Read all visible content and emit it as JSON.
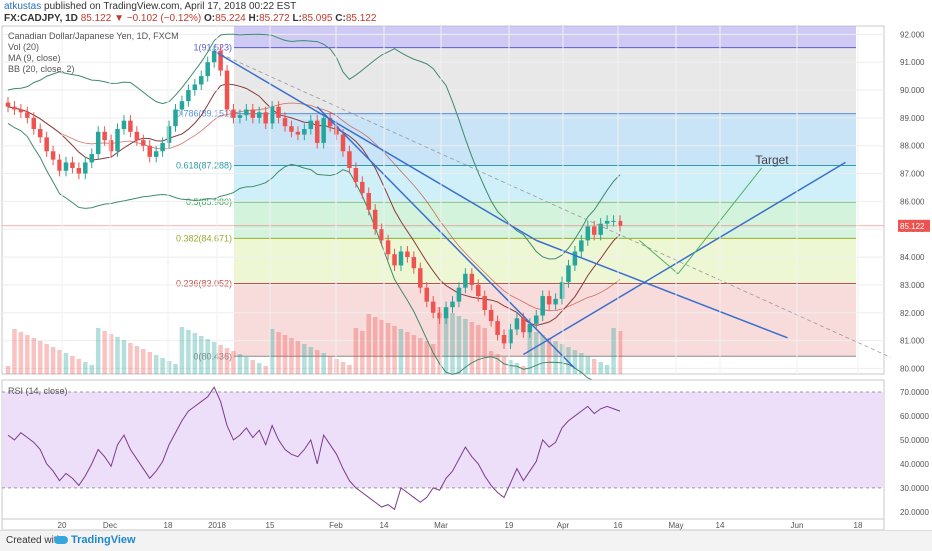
{
  "header": {
    "user": "atkustas",
    "published": "published on TradingView.com, April 17, 2018 00:22 EST",
    "symbol": "FX:CADJPY, 1D",
    "last": "85.122",
    "change": "▼ −0.102 (−0.12%)",
    "o_label": "O:",
    "o": "85.224",
    "h_label": "H:",
    "h": "85.272",
    "l_label": "L:",
    "l": "85.095",
    "c_label": "C:",
    "c": "85.122"
  },
  "legend": {
    "name": "Canadian Dollar/Japanese Yen, 1D, FXCM",
    "vol": "Vol (20)",
    "ma": "MA (9, close)",
    "bb": "BB (20, close, 2)"
  },
  "rsi_label": "RSI (14, close)",
  "footer": {
    "created": "Created with",
    "brand": "TradingView"
  },
  "colors": {
    "up": "#26a69a",
    "down": "#ef5350",
    "trend": "#3b6fce",
    "target": "#52b364",
    "bb": "#3f8b6e",
    "ma": "#8b3a3a",
    "rsi": "#7c3d8a"
  },
  "chart_data": [
    {
      "type": "candlestick",
      "title": "Canadian Dollar/Japanese Yen, 1D, FXCM",
      "ylim": [
        79.8,
        92.3
      ],
      "y_ticks": [
        "92.000",
        "91.000",
        "90.000",
        "89.000",
        "88.000",
        "87.000",
        "86.000",
        "85.000",
        "84.000",
        "83.000",
        "82.000",
        "81.000",
        "80.000"
      ],
      "x_ticks": [
        "20",
        "Dec",
        "18",
        "2018",
        "15",
        "Feb",
        "14",
        "Mar",
        "19",
        "Apr",
        "16",
        "May",
        "14",
        "Jun",
        "18"
      ],
      "last_price": "85.122",
      "fibonacci": [
        {
          "label": "1(91.523)",
          "value": 91.523
        },
        {
          "label": "0.786(89.151)",
          "value": 89.151
        },
        {
          "label": "0.618(87.288)",
          "value": 87.288
        },
        {
          "label": "0.5(85.980)",
          "value": 85.98
        },
        {
          "label": "0.382(84.671)",
          "value": 84.671
        },
        {
          "label": "0.236(83.052)",
          "value": 83.052
        },
        {
          "label": "0(80.436)",
          "value": 80.436
        }
      ],
      "annotations": [
        "Target"
      ],
      "closes": [
        89.4,
        89.3,
        89.2,
        89.0,
        88.6,
        88.3,
        87.8,
        87.5,
        87.1,
        87.4,
        87.2,
        87.0,
        87.4,
        87.7,
        88.5,
        88.2,
        87.8,
        88.6,
        88.9,
        88.5,
        88.2,
        88.0,
        87.6,
        87.8,
        88.1,
        88.7,
        89.3,
        89.6,
        90.0,
        90.2,
        90.5,
        91.0,
        91.4,
        90.7,
        89.3,
        89.0,
        89.1,
        89.3,
        89.0,
        89.2,
        88.8,
        89.4,
        89.0,
        88.7,
        88.5,
        88.4,
        88.6,
        88.9,
        88.1,
        89.0,
        88.7,
        88.4,
        87.8,
        87.2,
        86.7,
        86.3,
        85.7,
        85.0,
        84.6,
        84.1,
        83.7,
        84.2,
        84.0,
        83.6,
        82.9,
        82.4,
        82.0,
        81.8,
        82.2,
        82.4,
        82.9,
        83.4,
        83.0,
        82.6,
        82.1,
        81.7,
        81.2,
        80.9,
        81.4,
        81.8,
        81.3,
        81.6,
        81.9,
        82.6,
        82.3,
        82.5,
        83.1,
        83.7,
        84.2,
        84.6,
        85.1,
        84.8,
        85.2,
        85.3,
        85.3,
        85.122
      ],
      "rsi_ylim": [
        17,
        75
      ],
      "rsi_ticks": [
        "70.0000",
        "60.0000",
        "50.0000",
        "40.0000",
        "30.0000",
        "20.0000"
      ],
      "rsi_values": [
        52,
        50,
        53,
        51,
        49,
        46,
        40,
        37,
        33,
        36,
        34,
        31,
        35,
        40,
        46,
        43,
        39,
        48,
        52,
        46,
        42,
        38,
        34,
        37,
        41,
        48,
        53,
        58,
        62,
        64,
        66,
        68,
        72,
        66,
        56,
        50,
        52,
        55,
        51,
        54,
        48,
        56,
        50,
        46,
        44,
        43,
        46,
        50,
        40,
        52,
        48,
        44,
        38,
        33,
        30,
        28,
        26,
        24,
        22,
        23,
        21,
        30,
        28,
        26,
        24,
        26,
        30,
        29,
        34,
        37,
        42,
        47,
        43,
        40,
        35,
        31,
        28,
        26,
        32,
        38,
        33,
        37,
        41,
        50,
        47,
        49,
        55,
        58,
        60,
        62,
        64,
        61,
        63,
        64,
        63,
        62
      ]
    }
  ]
}
